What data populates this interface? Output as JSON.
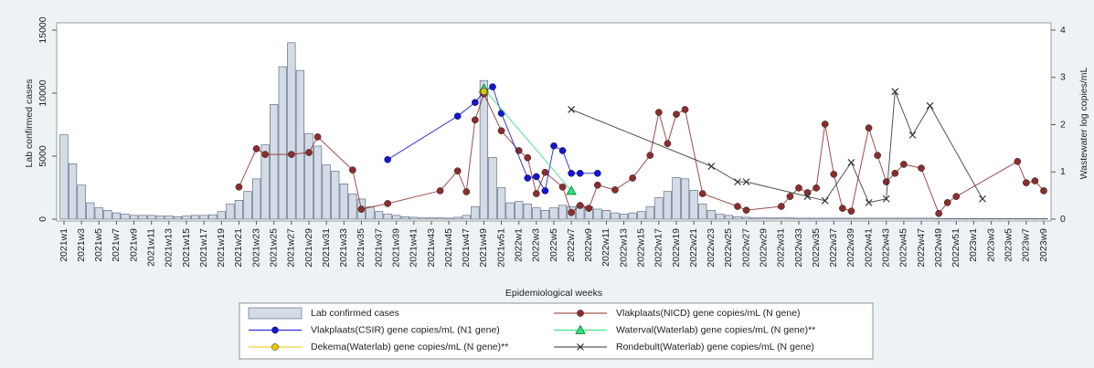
{
  "chart_data": {
    "type": "bar-line",
    "xlabel": "Epidemiological weeks",
    "ylabel": "Lab confirmed cases",
    "y2label": "Wastewater log copies/mL",
    "ylim": [
      0,
      15000
    ],
    "yticks": [
      0,
      5000,
      10000,
      15000
    ],
    "y2lim": [
      0,
      4
    ],
    "y2ticks": [
      0,
      1,
      2,
      3,
      4
    ],
    "legend": "bottom",
    "categories": [
      "2021w1",
      null,
      "2021w3",
      null,
      "2021w5",
      null,
      "2021w7",
      null,
      "2021w9",
      null,
      "2021w11",
      null,
      "2021w13",
      null,
      "2021w15",
      null,
      "2021w17",
      null,
      "2021w19",
      null,
      "2021w21",
      null,
      "2021w23",
      null,
      "2021w25",
      null,
      "2021w27",
      null,
      "2021w29",
      null,
      "2021w31",
      null,
      "2021w33",
      null,
      "2021w35",
      null,
      "2021w37",
      null,
      "2021w39",
      null,
      "2021w41",
      null,
      "2021w43",
      null,
      "2021w45",
      null,
      "2021w47",
      null,
      "2021w49",
      null,
      "2021w51",
      null,
      "2022w1",
      null,
      "2022w3",
      null,
      "2022w5",
      null,
      "2022w7",
      null,
      "2022w9",
      null,
      "2022w11",
      null,
      "2022w13",
      null,
      "2022w15",
      null,
      "2022w17",
      null,
      "2022w19",
      null,
      "2022w21",
      null,
      "2022w23",
      null,
      "2022w25",
      null,
      "2022w27",
      null,
      "2022w29",
      null,
      "2022w31",
      null,
      "2022w33",
      null,
      "2022w35",
      null,
      "2022w37",
      null,
      "2022w39",
      null,
      "2022w41",
      null,
      "2022w43",
      null,
      "2022w45",
      null,
      "2022w47",
      null,
      "2022w49",
      null,
      "2022w51",
      null,
      "2023w1",
      null,
      "2023w3",
      null,
      "2023w5",
      null,
      "2023w7",
      null,
      "2023w9"
    ],
    "series": [
      {
        "name": "Lab confirmed cases",
        "type": "bar",
        "color": "#d3dbe6",
        "values": [
          6700,
          4400,
          2700,
          1300,
          900,
          700,
          500,
          400,
          300,
          300,
          300,
          250,
          250,
          200,
          250,
          300,
          300,
          350,
          600,
          1200,
          1500,
          2200,
          3200,
          5900,
          9100,
          12100,
          14000,
          11800,
          6800,
          5800,
          4300,
          3800,
          2800,
          2000,
          1600,
          1000,
          600,
          400,
          300,
          200,
          150,
          100,
          100,
          100,
          80,
          150,
          300,
          1000,
          11000,
          4900,
          2500,
          1300,
          1400,
          1200,
          900,
          700,
          900,
          1100,
          1000,
          1100,
          1000,
          800,
          700,
          500,
          400,
          500,
          600,
          1000,
          1700,
          2200,
          3300,
          3200,
          2300,
          1200,
          700,
          400,
          300,
          200,
          150,
          100,
          100,
          100,
          100,
          100,
          80,
          80,
          80,
          80,
          80,
          80,
          80,
          80,
          80,
          80,
          80,
          80,
          80,
          80,
          80,
          80,
          60,
          60,
          60,
          50,
          50,
          50,
          50,
          50,
          50,
          50,
          50,
          50,
          50
        ]
      },
      {
        "name": "Vlakplaats(NICD) gene copies/mL (N gene)",
        "type": "line",
        "axis": "y2",
        "marker": "circle",
        "color": "#8c2d2d",
        "values": [
          null,
          null,
          null,
          null,
          null,
          null,
          null,
          null,
          null,
          null,
          null,
          null,
          null,
          null,
          null,
          null,
          null,
          null,
          null,
          null,
          0.68,
          null,
          1.49,
          1.37,
          null,
          null,
          1.37,
          null,
          1.41,
          1.74,
          null,
          null,
          null,
          1.04,
          0.21,
          null,
          null,
          0.33,
          null,
          null,
          null,
          null,
          null,
          0.6,
          null,
          1.02,
          0.58,
          2.1,
          2.65,
          null,
          1.87,
          null,
          1.45,
          1.3,
          0.54,
          0.99,
          null,
          0.68,
          0.14,
          0.29,
          0.23,
          0.72,
          null,
          0.62,
          null,
          0.87,
          null,
          1.35,
          2.26,
          1.6,
          2.22,
          2.32,
          null,
          0.54,
          null,
          null,
          null,
          0.27,
          0.19,
          null,
          null,
          null,
          0.27,
          0.48,
          0.66,
          0.56,
          0.66,
          2.01,
          0.95,
          0.23,
          0.17,
          null,
          1.93,
          1.35,
          0.79,
          0.97,
          1.16,
          null,
          1.08,
          null,
          0.12,
          0.35,
          0.48,
          null,
          null,
          null,
          null,
          null,
          null,
          1.22,
          0.77,
          0.81,
          0.6
        ]
      },
      {
        "name": "Vlakplaats(CSIR) gene copies/mL (N1 gene)",
        "type": "line",
        "axis": "y2",
        "marker": "circle",
        "color": "#1414d2",
        "values": [
          null,
          null,
          null,
          null,
          null,
          null,
          null,
          null,
          null,
          null,
          null,
          null,
          null,
          null,
          null,
          null,
          null,
          null,
          null,
          null,
          null,
          null,
          null,
          null,
          null,
          null,
          null,
          null,
          null,
          null,
          null,
          null,
          null,
          null,
          null,
          null,
          null,
          1.26,
          null,
          null,
          null,
          null,
          null,
          null,
          null,
          2.18,
          null,
          2.47,
          2.7,
          2.8,
          2.24,
          null,
          null,
          0.87,
          0.9,
          0.6,
          1.55,
          1.45,
          0.97,
          0.97,
          null,
          0.97,
          null,
          null,
          null,
          null,
          null,
          null,
          null,
          null,
          null,
          null,
          null,
          null,
          null,
          null,
          null,
          null,
          null,
          null,
          null,
          null,
          null,
          null,
          null,
          null,
          null,
          null,
          null,
          null,
          null,
          null,
          null,
          null,
          null,
          null,
          null,
          null,
          null,
          null,
          null,
          null,
          null,
          null,
          null,
          null,
          null,
          null,
          null,
          null,
          null,
          null,
          null
        ]
      },
      {
        "name": "Waterval(Waterlab) gene copies/mL (N gene)**",
        "type": "line",
        "axis": "y2",
        "marker": "triangle",
        "color": "#2ee07a",
        "values": [
          null,
          null,
          null,
          null,
          null,
          null,
          null,
          null,
          null,
          null,
          null,
          null,
          null,
          null,
          null,
          null,
          null,
          null,
          null,
          null,
          null,
          null,
          null,
          null,
          null,
          null,
          null,
          null,
          null,
          null,
          null,
          null,
          null,
          null,
          null,
          null,
          null,
          null,
          null,
          null,
          null,
          null,
          null,
          null,
          null,
          null,
          null,
          null,
          2.76,
          null,
          null,
          null,
          null,
          null,
          null,
          null,
          null,
          null,
          0.6,
          null,
          null,
          null,
          null,
          null,
          null,
          null,
          null,
          null,
          null,
          null,
          null,
          null,
          null,
          null,
          null,
          null,
          null,
          null,
          null,
          null,
          null,
          null,
          null,
          null,
          null,
          null,
          null,
          null,
          null,
          null,
          null,
          null,
          null,
          null,
          null,
          null,
          null,
          null,
          null,
          null,
          null,
          null,
          null,
          null,
          null,
          null,
          null,
          null,
          null,
          null,
          null,
          null,
          null
        ]
      },
      {
        "name": "Dekema(Waterlab) gene copies/mL (N gene)**",
        "type": "line",
        "axis": "y2",
        "marker": "circle",
        "color": "#e8c400",
        "values": [
          null,
          null,
          null,
          null,
          null,
          null,
          null,
          null,
          null,
          null,
          null,
          null,
          null,
          null,
          null,
          null,
          null,
          null,
          null,
          null,
          null,
          null,
          null,
          null,
          null,
          null,
          null,
          null,
          null,
          null,
          null,
          null,
          null,
          null,
          null,
          null,
          null,
          null,
          null,
          null,
          null,
          null,
          null,
          null,
          null,
          null,
          null,
          null,
          2.7,
          null,
          null,
          null,
          null,
          null,
          null,
          null,
          null,
          null,
          null,
          null,
          null,
          null,
          null,
          null,
          null,
          null,
          null,
          null,
          null,
          null,
          null,
          null,
          null,
          null,
          null,
          null,
          null,
          null,
          null,
          null,
          null,
          null,
          null,
          null,
          null,
          null,
          null,
          null,
          null,
          null,
          null,
          null,
          null,
          null,
          null,
          null,
          null,
          null,
          null,
          null,
          null,
          null,
          null,
          null,
          null,
          null,
          null,
          null,
          null,
          null,
          null,
          null,
          null
        ]
      },
      {
        "name": "Rondebult(Waterlab) gene copies/mL (N gene)",
        "type": "line",
        "axis": "y2",
        "marker": "x",
        "color": "#333333",
        "values": [
          null,
          null,
          null,
          null,
          null,
          null,
          null,
          null,
          null,
          null,
          null,
          null,
          null,
          null,
          null,
          null,
          null,
          null,
          null,
          null,
          null,
          null,
          null,
          null,
          null,
          null,
          null,
          null,
          null,
          null,
          null,
          null,
          null,
          null,
          null,
          null,
          null,
          null,
          null,
          null,
          null,
          null,
          null,
          null,
          null,
          null,
          null,
          null,
          null,
          null,
          null,
          null,
          null,
          null,
          null,
          null,
          null,
          null,
          2.32,
          null,
          null,
          null,
          null,
          null,
          null,
          null,
          null,
          null,
          null,
          null,
          null,
          null,
          null,
          null,
          1.12,
          null,
          null,
          0.79,
          0.79,
          null,
          null,
          null,
          null,
          null,
          null,
          0.48,
          null,
          0.39,
          null,
          null,
          1.2,
          null,
          0.35,
          null,
          0.43,
          2.7,
          null,
          1.78,
          null,
          2.4,
          null,
          null,
          null,
          null,
          null,
          0.43,
          null,
          null,
          null,
          null,
          null,
          null,
          null
        ]
      }
    ]
  }
}
